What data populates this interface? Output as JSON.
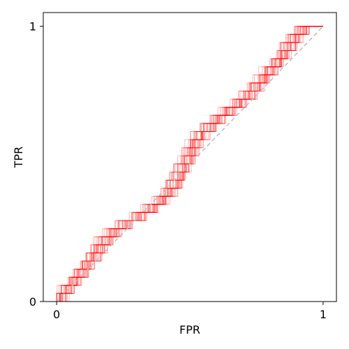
{
  "chart_data": {
    "type": "line",
    "title": "",
    "xlabel": "FPR",
    "ylabel": "TPR",
    "xlim": [
      -0.05,
      1.05
    ],
    "ylim": [
      0,
      1.05
    ],
    "x_ticks": [
      0,
      1
    ],
    "x_tick_labels": [
      "0",
      "1"
    ],
    "y_ticks": [
      0,
      1
    ],
    "y_tick_labels": [
      "0",
      "1"
    ],
    "grid": false,
    "colors": {
      "series": "#ff0000",
      "reference": "#bbbbbb",
      "axes": "#000000",
      "background": "#ffffff"
    },
    "reference_line": {
      "style": "dashed",
      "x": [
        0,
        1
      ],
      "y": [
        0,
        1
      ]
    },
    "series_count": 30,
    "mean_curve": {
      "x": [
        0.0,
        0.01,
        0.03,
        0.05,
        0.08,
        0.1,
        0.13,
        0.15,
        0.17,
        0.2,
        0.23,
        0.26,
        0.3,
        0.33,
        0.36,
        0.4,
        0.43,
        0.46,
        0.48,
        0.5,
        0.52,
        0.54,
        0.56,
        0.58,
        0.62,
        0.66,
        0.7,
        0.74,
        0.78,
        0.8,
        0.83,
        0.86,
        0.88,
        0.9,
        0.93,
        0.96,
        1.0
      ],
      "y": [
        0.0,
        0.03,
        0.05,
        0.08,
        0.11,
        0.14,
        0.17,
        0.2,
        0.23,
        0.26,
        0.28,
        0.3,
        0.32,
        0.34,
        0.36,
        0.39,
        0.43,
        0.48,
        0.52,
        0.56,
        0.6,
        0.62,
        0.64,
        0.66,
        0.69,
        0.72,
        0.75,
        0.79,
        0.83,
        0.86,
        0.89,
        0.93,
        0.96,
        0.98,
        0.99,
        1.0,
        1.0
      ]
    }
  }
}
